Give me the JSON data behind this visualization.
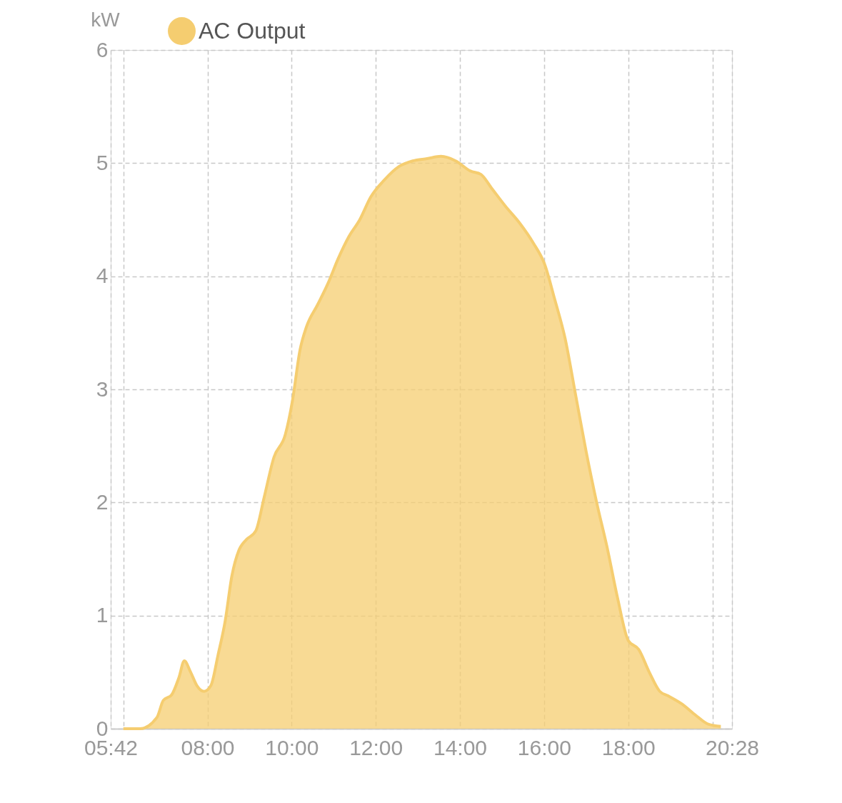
{
  "chart_data": {
    "type": "area",
    "ylabel": "kW",
    "legend": "top left",
    "grid": true,
    "marker": "none",
    "line_style": "solid",
    "xlim": [
      5.7,
      20.4667
    ],
    "ylim": [
      0,
      6
    ],
    "xticks": [
      {
        "value": 5.7,
        "label": "05:42"
      },
      {
        "value": 6,
        "label": null
      },
      {
        "value": 8,
        "label": "08:00"
      },
      {
        "value": 10,
        "label": "10:00"
      },
      {
        "value": 12,
        "label": "12:00"
      },
      {
        "value": 14,
        "label": "14:00"
      },
      {
        "value": 16,
        "label": "16:00"
      },
      {
        "value": 18,
        "label": "18:00"
      },
      {
        "value": 20,
        "label": null
      },
      {
        "value": 20.4667,
        "label": "20:28"
      }
    ],
    "yticks": [
      0,
      1,
      2,
      3,
      4,
      5,
      6
    ],
    "series": [
      {
        "name": "AC Output",
        "color": "#f5cd70",
        "x": [
          6.0,
          6.4,
          6.8,
          6.95,
          7.15,
          7.32,
          7.45,
          7.6,
          7.75,
          7.92,
          8.08,
          8.25,
          8.42,
          8.58,
          8.75,
          8.92,
          9.15,
          9.35,
          9.58,
          9.85,
          10.02,
          10.2,
          10.35,
          10.62,
          10.88,
          11.1,
          11.36,
          11.62,
          11.88,
          12.2,
          12.55,
          12.88,
          13.22,
          13.55,
          13.9,
          14.25,
          14.5,
          14.75,
          15.08,
          15.42,
          15.75,
          16.02,
          16.25,
          16.5,
          16.75,
          17.0,
          17.25,
          17.5,
          17.75,
          18.0,
          18.25,
          18.5,
          18.75,
          18.95,
          19.27,
          19.6,
          19.9,
          20.2
        ],
        "values": [
          0,
          0,
          0.1,
          0.25,
          0.3,
          0.45,
          0.6,
          0.5,
          0.38,
          0.33,
          0.38,
          0.65,
          0.95,
          1.35,
          1.58,
          1.67,
          1.75,
          2.05,
          2.4,
          2.6,
          2.9,
          3.35,
          3.55,
          3.75,
          3.95,
          4.15,
          4.35,
          4.5,
          4.7,
          4.85,
          4.97,
          5.02,
          5.04,
          5.06,
          5.02,
          4.93,
          4.9,
          4.78,
          4.62,
          4.47,
          4.29,
          4.1,
          3.8,
          3.45,
          2.95,
          2.45,
          2.0,
          1.6,
          1.15,
          0.78,
          0.7,
          0.5,
          0.33,
          0.29,
          0.22,
          0.12,
          0.04,
          0.02
        ]
      }
    ]
  }
}
